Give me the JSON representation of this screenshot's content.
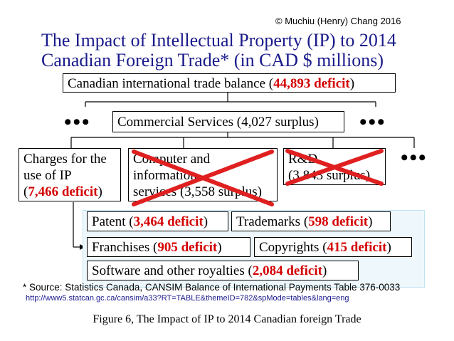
{
  "copyright": "© Muchiu (Henry) Chang 2016",
  "title_line1": "The Impact of Intellectual Property (IP) to 2014",
  "title_line2": "Canadian Foreign Trade* (in CAD $ millions)",
  "top_box": {
    "label": "Canadian international trade balance (",
    "value": "44,893 deficit",
    "close": ")"
  },
  "commercial_box": {
    "label": "Commercial Services (4,027 surplus)"
  },
  "charges_box": {
    "line1": "Charges for the",
    "line2": "use of IP",
    "open": "(",
    "value": "7,466 deficit",
    "close": ")"
  },
  "computer_box": {
    "line1": "Computer and",
    "line2": "information",
    "line3": "services (3,558 surplus)"
  },
  "rd_box": {
    "line1": "R&D",
    "line2": "(3,843 surplus)"
  },
  "ellipsis": "•••",
  "subitems": {
    "patent": {
      "label": "Patent (",
      "value": "3,464 deficit",
      "close": ")"
    },
    "trademarks": {
      "label": "Trademarks (",
      "value": "598 deficit",
      "close": ")"
    },
    "franchises": {
      "label": "Franchises (",
      "value": "905 deficit",
      "close": ")"
    },
    "copyrights": {
      "label": "Copyrights (",
      "value": "415 deficit",
      "close": ")"
    },
    "software": {
      "label": "Software and other royalties (",
      "value": "2,084 deficit",
      "close": ")"
    }
  },
  "source": "* Source: Statistics Canada, CANSIM Balance of International Payments Table 376-0033",
  "url": "http://www5.statcan.gc.ca/cansim/a33?RT=TABLE&themeID=782&spMode=tables&lang=eng",
  "caption": "Figure 6, The Impact of IP to 2014 Canadian foreign Trade",
  "colors": {
    "title": "#1a1a8c",
    "deficit": "#d40000",
    "cross": "#e02020",
    "panel": "#eef8fc"
  }
}
